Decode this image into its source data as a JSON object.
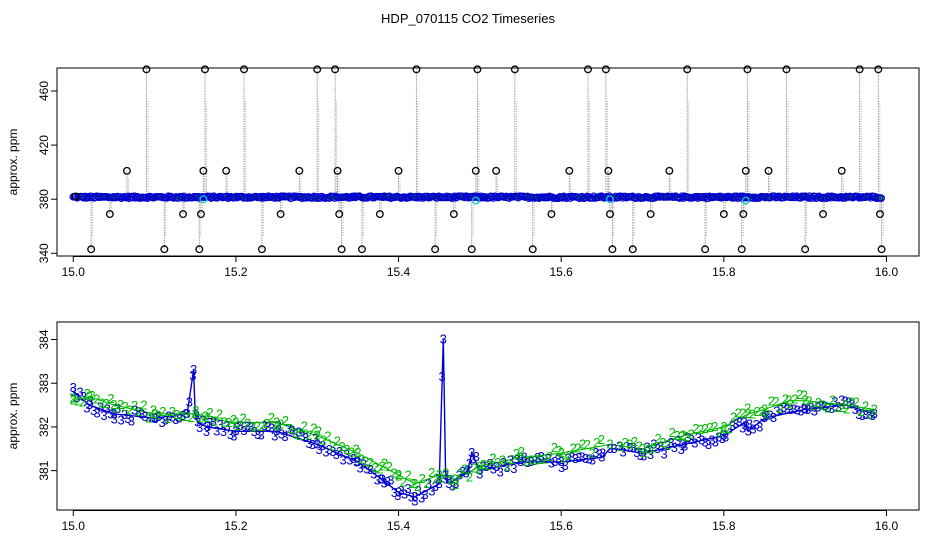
{
  "title": "HDP_070115  CO2 Timeseries",
  "colors": {
    "black": "#000000",
    "blue": "#0000cc",
    "green": "#00bb00",
    "cyan": "#00cccc",
    "grey": "#999999"
  },
  "chart_data": [
    {
      "type": "scatter",
      "panel": "top",
      "ylabel": "approx. ppm",
      "xlim": [
        14.98,
        16.04
      ],
      "ylim": [
        338,
        477
      ],
      "x_ticks": [
        15.0,
        15.2,
        15.4,
        15.6,
        15.8,
        16.0
      ],
      "x_tick_labels": [
        "15.0",
        "15.2",
        "15.4",
        "15.6",
        "15.8",
        "16.0"
      ],
      "y_ticks": [
        340,
        380,
        420,
        460
      ],
      "y_tick_labels": [
        "340",
        "380",
        "420",
        "460"
      ],
      "baseline_ppm": 381.5,
      "series": [
        {
          "color": "black",
          "marker": "circle",
          "points": [
            [
              15.003,
              382
            ],
            [
              15.022,
              343
            ],
            [
              15.045,
              369
            ],
            [
              15.066,
              401
            ],
            [
              15.09,
              476
            ],
            [
              15.112,
              343
            ],
            [
              15.135,
              369
            ],
            [
              15.155,
              343
            ],
            [
              15.157,
              369
            ],
            [
              15.16,
              401
            ],
            [
              15.162,
              476
            ],
            [
              15.188,
              401
            ],
            [
              15.21,
              476
            ],
            [
              15.232,
              343
            ],
            [
              15.255,
              369
            ],
            [
              15.278,
              401
            ],
            [
              15.3,
              476
            ],
            [
              15.322,
              476
            ],
            [
              15.325,
              401
            ],
            [
              15.327,
              369
            ],
            [
              15.33,
              343
            ],
            [
              15.355,
              343
            ],
            [
              15.377,
              369
            ],
            [
              15.4,
              401
            ],
            [
              15.422,
              476
            ],
            [
              15.445,
              343
            ],
            [
              15.468,
              369
            ],
            [
              15.49,
              343
            ],
            [
              15.495,
              401
            ],
            [
              15.497,
              476
            ],
            [
              15.52,
              401
            ],
            [
              15.543,
              476
            ],
            [
              15.565,
              343
            ],
            [
              15.588,
              369
            ],
            [
              15.61,
              401
            ],
            [
              15.633,
              476
            ],
            [
              15.655,
              476
            ],
            [
              15.658,
              401
            ],
            [
              15.66,
              369
            ],
            [
              15.663,
              343
            ],
            [
              15.688,
              343
            ],
            [
              15.71,
              369
            ],
            [
              15.733,
              401
            ],
            [
              15.755,
              476
            ],
            [
              15.777,
              343
            ],
            [
              15.8,
              369
            ],
            [
              15.822,
              343
            ],
            [
              15.824,
              369
            ],
            [
              15.827,
              401
            ],
            [
              15.829,
              476
            ],
            [
              15.855,
              401
            ],
            [
              15.877,
              476
            ],
            [
              15.9,
              343
            ],
            [
              15.922,
              369
            ],
            [
              15.945,
              401
            ],
            [
              15.967,
              476
            ],
            [
              15.99,
              476
            ],
            [
              15.992,
              369
            ],
            [
              15.994,
              343
            ]
          ]
        },
        {
          "color": "blue",
          "marker": "circle",
          "values_near_ppm": 381.5
        },
        {
          "color": "cyan",
          "marker": "circle",
          "points": [
            [
              15.16,
              380
            ],
            [
              15.495,
              379
            ],
            [
              15.66,
              380
            ],
            [
              15.827,
              379
            ]
          ]
        }
      ]
    },
    {
      "type": "line",
      "panel": "bottom",
      "ylabel": "approx. ppm",
      "xlim": [
        14.98,
        16.04
      ],
      "ylim": [
        380.1,
        384.4
      ],
      "x_ticks": [
        15.0,
        15.2,
        15.4,
        15.6,
        15.8,
        16.0
      ],
      "x_tick_labels": [
        "15.0",
        "15.2",
        "15.4",
        "15.6",
        "15.8",
        "16.0"
      ],
      "y_ticks": [
        381,
        382,
        383,
        384
      ],
      "y_tick_labels": [
        "381",
        "382",
        "383",
        "384"
      ],
      "series": [
        {
          "color": "blue",
          "marker": "3",
          "x": [
            15.0,
            15.02,
            15.05,
            15.1,
            15.14,
            15.148,
            15.15,
            15.153,
            15.165,
            15.2,
            15.25,
            15.3,
            15.35,
            15.38,
            15.4,
            15.42,
            15.45,
            15.455,
            15.458,
            15.462,
            15.47,
            15.485,
            15.49,
            15.5,
            15.55,
            15.6,
            15.65,
            15.66,
            15.665,
            15.7,
            15.75,
            15.8,
            15.825,
            15.83,
            15.85,
            15.9,
            15.95,
            15.985
          ],
          "y": [
            382.8,
            382.5,
            382.3,
            382.2,
            382.3,
            383.3,
            382.3,
            382.1,
            382.0,
            381.9,
            381.9,
            381.6,
            381.2,
            380.8,
            380.5,
            380.4,
            380.7,
            384.0,
            380.8,
            380.7,
            380.8,
            381.0,
            381.4,
            381.0,
            381.2,
            381.2,
            381.3,
            381.5,
            381.5,
            381.4,
            381.6,
            381.8,
            382.1,
            381.9,
            382.2,
            382.4,
            382.5,
            382.3
          ]
        },
        {
          "color": "green",
          "marker": "2",
          "x": [
            15.0,
            15.02,
            15.05,
            15.1,
            15.15,
            15.165,
            15.2,
            15.25,
            15.3,
            15.35,
            15.38,
            15.4,
            15.42,
            15.45,
            15.47,
            15.5,
            15.55,
            15.6,
            15.66,
            15.7,
            15.75,
            15.8,
            15.83,
            15.85,
            15.88,
            15.9,
            15.95,
            15.985
          ],
          "y": [
            382.6,
            382.7,
            382.5,
            382.3,
            382.3,
            382.2,
            382.1,
            382.1,
            381.8,
            381.4,
            381.1,
            380.9,
            380.7,
            380.9,
            380.8,
            381.1,
            381.3,
            381.4,
            381.6,
            381.5,
            381.8,
            382.0,
            382.3,
            382.4,
            382.6,
            382.6,
            382.5,
            382.4
          ]
        }
      ]
    }
  ]
}
